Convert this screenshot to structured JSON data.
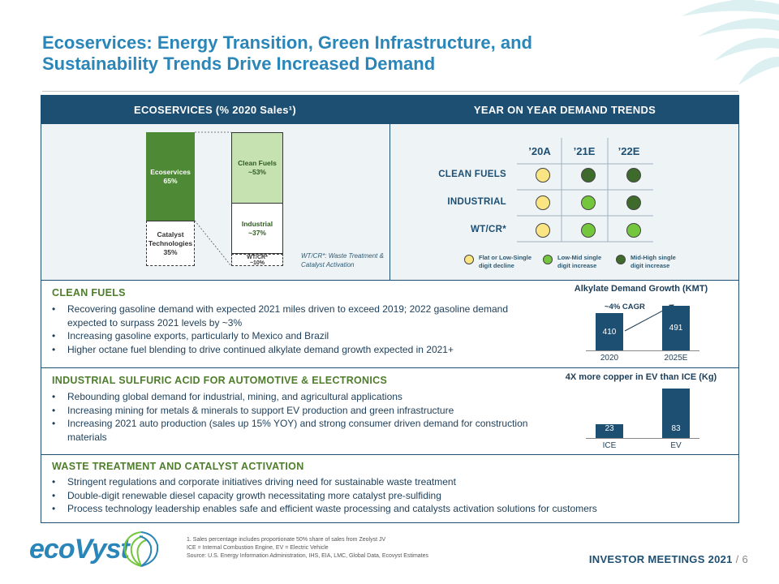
{
  "title_line1": "Ecoservices: Energy Transition, Green Infrastructure, and",
  "title_line2": "Sustainability Trends Drive Increased Demand",
  "header_left": "ECOSERVICES (% 2020 Sales¹)",
  "header_right": "YEAR ON YEAR DEMAND TRENDS",
  "mix": {
    "ecoservices_label": "Ecoservices",
    "ecoservices_pct": "65%",
    "catalyst_label": "Catalyst Technologies",
    "catalyst_pct": "35%",
    "clean_fuels_label": "Clean Fuels",
    "clean_fuels_pct": "~53%",
    "industrial_label": "Industrial",
    "industrial_pct": "~37%",
    "wtcr_label": "WT/CR*",
    "wtcr_pct": "~10%",
    "wtcr_note": "WT/CR*: Waste Treatment & Catalyst Activation"
  },
  "trends": {
    "columns": [
      "’20A",
      "’21E",
      "’22E"
    ],
    "rows": [
      {
        "label": "CLEAN FUELS",
        "levels": [
          "flat",
          "mid",
          "mid"
        ]
      },
      {
        "label": "INDUSTRIAL",
        "levels": [
          "flat",
          "low",
          "mid"
        ]
      },
      {
        "label": "WT/CR*",
        "levels": [
          "flat",
          "low",
          "low"
        ]
      }
    ],
    "legend": {
      "flat": "Flat or Low-Single digit decline",
      "low": "Low-Mid single digit increase",
      "mid": "Mid-High single digit increase"
    },
    "colors": {
      "flat": "#fbe582",
      "low": "#74c63d",
      "mid": "#3e6b2c"
    }
  },
  "sections": [
    {
      "title": "CLEAN FUELS",
      "bullets": [
        "Recovering gasoline demand with expected 2021 miles driven to exceed 2019; 2022 gasoline demand expected to surpass 2021 levels by ~3%",
        "Increasing gasoline exports, particularly to Mexico and Brazil",
        "Higher octane fuel blending to drive continued alkylate demand growth expected in 2021+"
      ]
    },
    {
      "title": "INDUSTRIAL SULFURIC ACID FOR AUTOMOTIVE & ELECTRONICS",
      "bullets": [
        "Rebounding global demand for industrial, mining, and agricultural applications",
        "Increasing mining for metals & minerals to support EV production and green infrastructure",
        "Increasing 2021 auto production (sales up 15% YOY) and strong consumer driven demand  for construction materials"
      ]
    },
    {
      "title": "WASTE TREATMENT AND CATALYST ACTIVATION",
      "bullets": [
        "Stringent regulations and corporate initiatives driving need for sustainable waste treatment",
        "Double-digit renewable diesel capacity growth necessitating more catalyst pre-sulfiding",
        "Process technology leadership enables safe and efficient waste processing and catalysts activation solutions for customers"
      ]
    }
  ],
  "chart_data": [
    {
      "type": "bar",
      "title": "Alkylate Demand Growth (KMT)",
      "categories": [
        "2020",
        "2025E"
      ],
      "values": [
        410,
        491
      ],
      "annotation": "~4% CAGR",
      "ylim": [
        0,
        500
      ]
    },
    {
      "type": "bar",
      "title": "4X more copper in EV than ICE (Kg)",
      "categories": [
        "ICE",
        "EV"
      ],
      "values": [
        23,
        83
      ],
      "ylim": [
        0,
        85
      ]
    }
  ],
  "footer": {
    "note1": "1.      Sales percentage includes proportionate 50% share of sales from Zeolyst JV",
    "note2": "ICE = Internal Combustion Engine, EV = Electric Vehicle",
    "note3": "Source:  U.S. Energy Information Administration, IHS, EIA, LMC, Global Data, Ecovyst Estimates",
    "event": "INVESTOR MEETINGS 2021",
    "page": "6",
    "logo": "ecoVyst"
  }
}
